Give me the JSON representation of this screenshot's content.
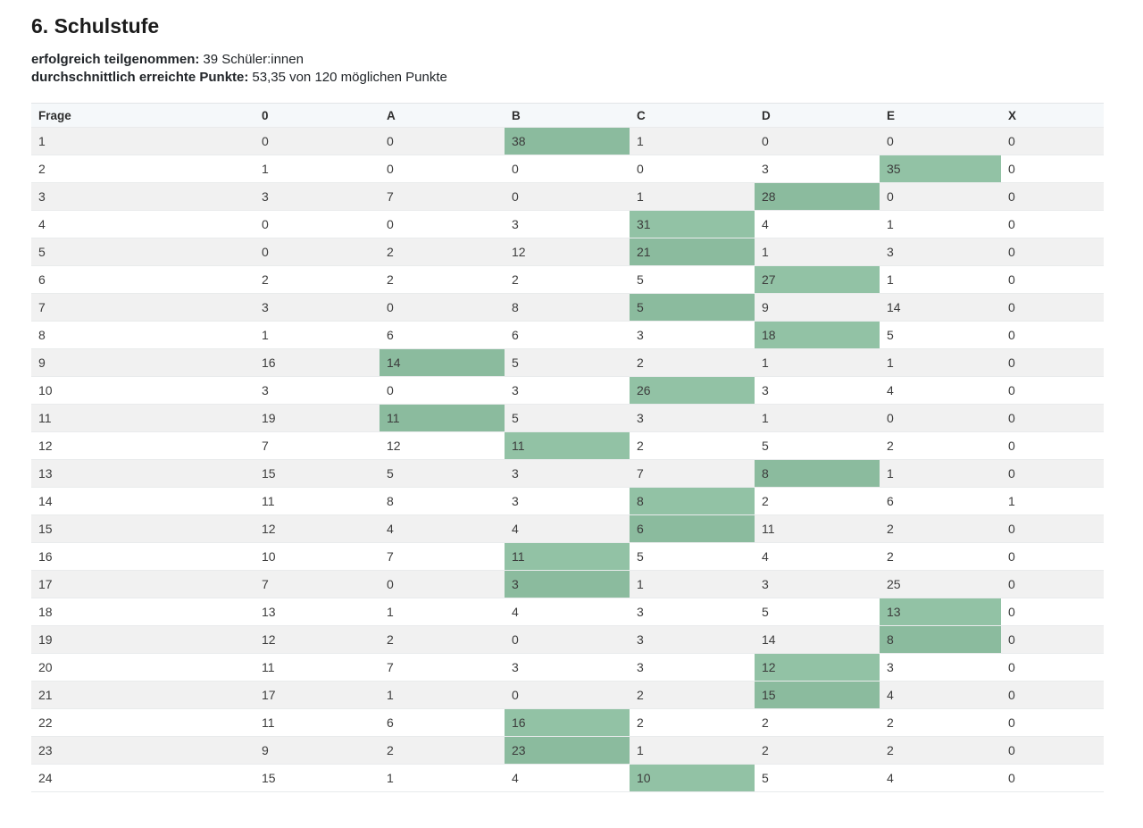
{
  "page": {
    "title": "6. Schulstufe",
    "meta": [
      {
        "label": "erfolgreich teilgenommen:",
        "value": "39 Schüler:innen"
      },
      {
        "label": "durchschnittlich erreichte Punkte:",
        "value": "53,35 von 120 möglichen Punkte"
      }
    ]
  },
  "colors": {
    "highlight_green_base": "#25854B",
    "highlight_green_alpha": "rgba(37,133,75,0.5)",
    "highlight_on_white_row": "#92C2A5",
    "highlight_on_stripe_row": "#8BBA9E",
    "stripe_row_bg": "#f1f1f1",
    "header_row_bg": "#f5f8fa",
    "text": "#3c3c3c"
  },
  "chart_data": {
    "type": "table",
    "title": "6. Schulstufe",
    "subtitle_lines": [
      "erfolgreich teilgenommen: 39 Schüler:innen",
      "durchschnittlich erreichte Punkte: 53,35 von 120 möglichen Punkte"
    ],
    "participants": 39,
    "average_points": "53,35",
    "max_points": 120,
    "columns": [
      "Frage",
      "0",
      "A",
      "B",
      "C",
      "D",
      "E",
      "X"
    ],
    "layout": {
      "zebra_striping": true,
      "highlight_style": "green cell fill"
    },
    "rows": [
      {
        "q": 1,
        "counts": [
          0,
          0,
          38,
          1,
          0,
          0,
          0
        ],
        "highlight": "B"
      },
      {
        "q": 2,
        "counts": [
          1,
          0,
          0,
          0,
          3,
          35,
          0
        ],
        "highlight": "E"
      },
      {
        "q": 3,
        "counts": [
          3,
          7,
          0,
          1,
          28,
          0,
          0
        ],
        "highlight": "D"
      },
      {
        "q": 4,
        "counts": [
          0,
          0,
          3,
          31,
          4,
          1,
          0
        ],
        "highlight": "C"
      },
      {
        "q": 5,
        "counts": [
          0,
          2,
          12,
          21,
          1,
          3,
          0
        ],
        "highlight": "C"
      },
      {
        "q": 6,
        "counts": [
          2,
          2,
          2,
          5,
          27,
          1,
          0
        ],
        "highlight": "D"
      },
      {
        "q": 7,
        "counts": [
          3,
          0,
          8,
          5,
          9,
          14,
          0
        ],
        "highlight": "C"
      },
      {
        "q": 8,
        "counts": [
          1,
          6,
          6,
          3,
          18,
          5,
          0
        ],
        "highlight": "D"
      },
      {
        "q": 9,
        "counts": [
          16,
          14,
          5,
          2,
          1,
          1,
          0
        ],
        "highlight": "A"
      },
      {
        "q": 10,
        "counts": [
          3,
          0,
          3,
          26,
          3,
          4,
          0
        ],
        "highlight": "C"
      },
      {
        "q": 11,
        "counts": [
          19,
          11,
          5,
          3,
          1,
          0,
          0
        ],
        "highlight": "A"
      },
      {
        "q": 12,
        "counts": [
          7,
          12,
          11,
          2,
          5,
          2,
          0
        ],
        "highlight": "B"
      },
      {
        "q": 13,
        "counts": [
          15,
          5,
          3,
          7,
          8,
          1,
          0
        ],
        "highlight": "D"
      },
      {
        "q": 14,
        "counts": [
          11,
          8,
          3,
          8,
          2,
          6,
          1
        ],
        "highlight": "C"
      },
      {
        "q": 15,
        "counts": [
          12,
          4,
          4,
          6,
          11,
          2,
          0
        ],
        "highlight": "C"
      },
      {
        "q": 16,
        "counts": [
          10,
          7,
          11,
          5,
          4,
          2,
          0
        ],
        "highlight": "B"
      },
      {
        "q": 17,
        "counts": [
          7,
          0,
          3,
          1,
          3,
          25,
          0
        ],
        "highlight": "B"
      },
      {
        "q": 18,
        "counts": [
          13,
          1,
          4,
          3,
          5,
          13,
          0
        ],
        "highlight": "E"
      },
      {
        "q": 19,
        "counts": [
          12,
          2,
          0,
          3,
          14,
          8,
          0
        ],
        "highlight": "E"
      },
      {
        "q": 20,
        "counts": [
          11,
          7,
          3,
          3,
          12,
          3,
          0
        ],
        "highlight": "D"
      },
      {
        "q": 21,
        "counts": [
          17,
          1,
          0,
          2,
          15,
          4,
          0
        ],
        "highlight": "D"
      },
      {
        "q": 22,
        "counts": [
          11,
          6,
          16,
          2,
          2,
          2,
          0
        ],
        "highlight": "B"
      },
      {
        "q": 23,
        "counts": [
          9,
          2,
          23,
          1,
          2,
          2,
          0
        ],
        "highlight": "B"
      },
      {
        "q": 24,
        "counts": [
          15,
          1,
          4,
          10,
          5,
          4,
          0
        ],
        "highlight": "C"
      }
    ]
  }
}
